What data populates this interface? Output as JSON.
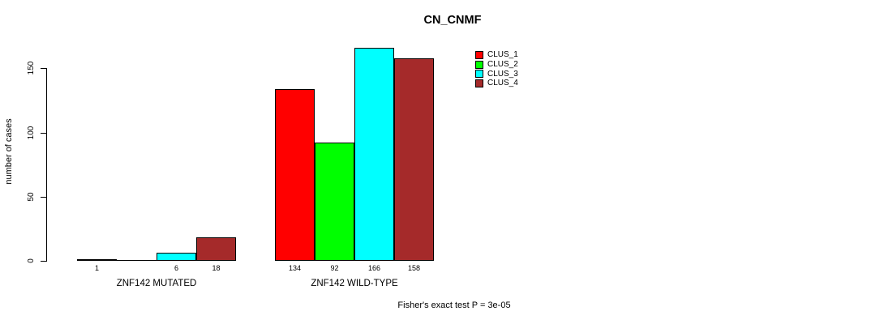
{
  "chart_data": {
    "type": "bar",
    "title": "CN_CNMF",
    "ylabel": "number of cases",
    "annotation": "Fisher's exact test P = 3e-05",
    "yticks": [
      0,
      50,
      100,
      150
    ],
    "ylim": [
      0,
      166
    ],
    "grid": false,
    "legend_position": "top-right",
    "series": [
      "CLUS_1",
      "CLUS_2",
      "CLUS_3",
      "CLUS_4"
    ],
    "colors": [
      "#FF0000",
      "#00FF00",
      "#00FFFF",
      "#A52A2A"
    ],
    "groups": [
      {
        "label": "ZNF142 MUTATED",
        "values": [
          1,
          0,
          6,
          18
        ],
        "bar_labels": [
          "1",
          "",
          "6",
          "18"
        ]
      },
      {
        "label": "ZNF142 WILD-TYPE",
        "values": [
          134,
          92,
          166,
          158
        ],
        "bar_labels": [
          "134",
          "92",
          "166",
          "158"
        ]
      }
    ]
  }
}
